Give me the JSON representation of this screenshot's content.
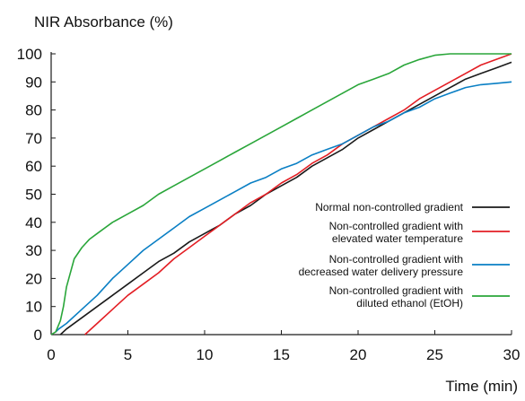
{
  "chart_data": {
    "type": "line",
    "ylabel": "NIR Absorbance (%)",
    "xlabel": "Time (min)",
    "xlim": [
      0,
      30
    ],
    "ylim": [
      0,
      100
    ],
    "xticks": [
      0,
      5,
      10,
      15,
      20,
      25,
      30
    ],
    "yticks": [
      0,
      10,
      20,
      30,
      40,
      50,
      60,
      70,
      80,
      90,
      100
    ],
    "grid": false,
    "legend_position": "center-right",
    "series": [
      {
        "name": "Normal non-controlled gradient",
        "color": "#1a1a1a",
        "x": [
          0.6,
          1,
          2,
          3,
          4,
          5,
          6,
          7,
          8,
          9,
          10,
          11,
          12,
          13,
          14,
          15,
          16,
          17,
          18,
          19,
          20,
          21,
          22,
          23,
          24,
          25,
          26,
          27,
          28,
          29,
          30
        ],
        "y": [
          0,
          2,
          6,
          10,
          14,
          18,
          22,
          26,
          29,
          33,
          36,
          39,
          43,
          46,
          50,
          53,
          56,
          60,
          63,
          66,
          70,
          73,
          76,
          79,
          82,
          85,
          88,
          91,
          93,
          95,
          97
        ]
      },
      {
        "name": "Non-controlled gradient with elevated water temperature",
        "color": "#e31e24",
        "x": [
          2.2,
          3,
          4,
          5,
          6,
          7,
          8,
          9,
          10,
          11,
          12,
          13,
          14,
          15,
          16,
          17,
          18,
          19,
          20,
          21,
          22,
          23,
          24,
          25,
          26,
          27,
          28,
          29,
          30
        ],
        "y": [
          0,
          4,
          9,
          14,
          18,
          22,
          27,
          31,
          35,
          39,
          43,
          47,
          50,
          54,
          57,
          61,
          64,
          68,
          71,
          74,
          77,
          80,
          84,
          87,
          90,
          93,
          96,
          98,
          100
        ]
      },
      {
        "name": "Non-controlled gradient with decreased water delivery pressure",
        "color": "#0a7fc4",
        "x": [
          0.3,
          0.5,
          1,
          2,
          3,
          4,
          5,
          6,
          7,
          8,
          9,
          10,
          11,
          12,
          13,
          14,
          15,
          16,
          17,
          18,
          19,
          20,
          21,
          22,
          23,
          24,
          25,
          26,
          27,
          28,
          29,
          30
        ],
        "y": [
          1,
          2,
          4,
          9,
          14,
          20,
          25,
          30,
          34,
          38,
          42,
          45,
          48,
          51,
          54,
          56,
          59,
          61,
          64,
          66,
          68,
          71,
          74,
          76,
          79,
          81,
          84,
          86,
          88,
          89,
          89.5,
          90
        ]
      },
      {
        "name": "Non-controlled gradient with diluted ethanol (EtOH)",
        "color": "#2aa63a",
        "x": [
          0,
          0.3,
          0.6,
          0.8,
          1,
          1.5,
          2,
          2.5,
          3,
          4,
          5,
          6,
          7,
          8,
          9,
          10,
          11,
          12,
          13,
          14,
          15,
          16,
          17,
          18,
          19,
          20,
          21,
          22,
          23,
          24,
          25,
          26,
          27,
          28,
          29,
          30
        ],
        "y": [
          0,
          1,
          5,
          10,
          17,
          27,
          31,
          34,
          36,
          40,
          43,
          46,
          50,
          53,
          56,
          59,
          62,
          65,
          68,
          71,
          74,
          77,
          80,
          83,
          86,
          89,
          91,
          93,
          96,
          98,
          99.5,
          100,
          100,
          100,
          100,
          100
        ]
      }
    ]
  }
}
